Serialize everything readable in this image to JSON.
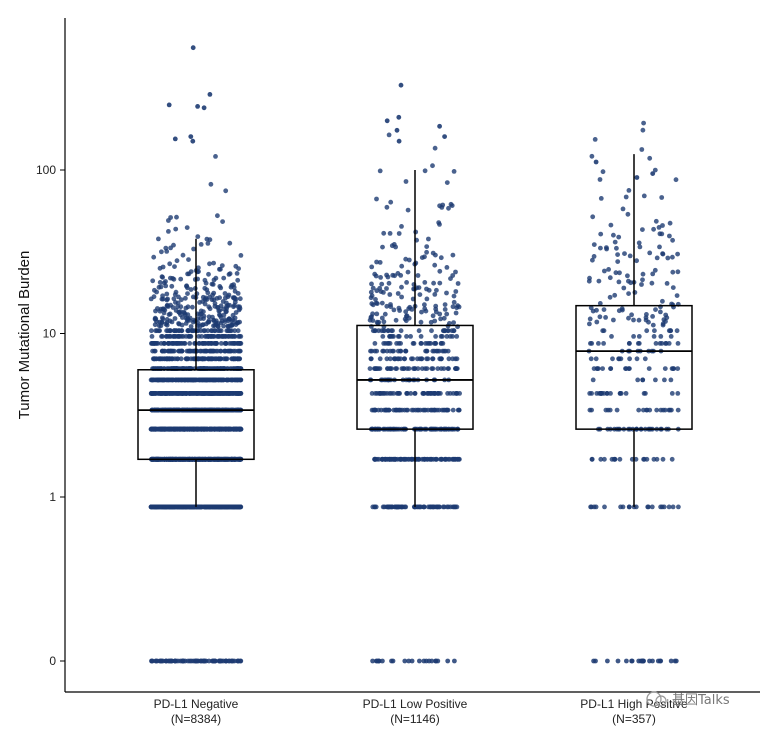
{
  "chart_data": {
    "type": "box_jitter",
    "ylabel": "Tumor Mutational Burden",
    "y_scale": "log (with 0 shown at bottom)",
    "y_ticks": [
      "0",
      "1",
      "10",
      "100"
    ],
    "categories": [
      {
        "name": "PD-L1 Negative",
        "n_label": "(N=8384)"
      },
      {
        "name": "PD-L1 Low Positive",
        "n_label": "(N=1146)"
      },
      {
        "name": "PD-L1 High Positive",
        "n_label": "(N=357)"
      }
    ],
    "boxes": [
      {
        "whisker_low": 0.87,
        "q1": 1.7,
        "median": 3.4,
        "q3": 6.0,
        "whisker_high": 38
      },
      {
        "whisker_low": 0.87,
        "q1": 2.6,
        "median": 5.2,
        "q3": 11.2,
        "whisker_high": 100
      },
      {
        "whisker_low": 0.87,
        "q1": 2.6,
        "median": 7.8,
        "q3": 14.8,
        "whisker_high": 125
      }
    ],
    "outliers": [
      [
        560,
        290,
        250,
        245,
        240,
        160,
        155,
        150
      ],
      [
        330,
        210,
        200,
        185,
        175,
        160,
        150
      ],
      [
        112,
        95,
        90
      ]
    ],
    "point_color": "#1d3b72",
    "grid": false
  },
  "watermark": {
    "text": "基因Talks"
  }
}
